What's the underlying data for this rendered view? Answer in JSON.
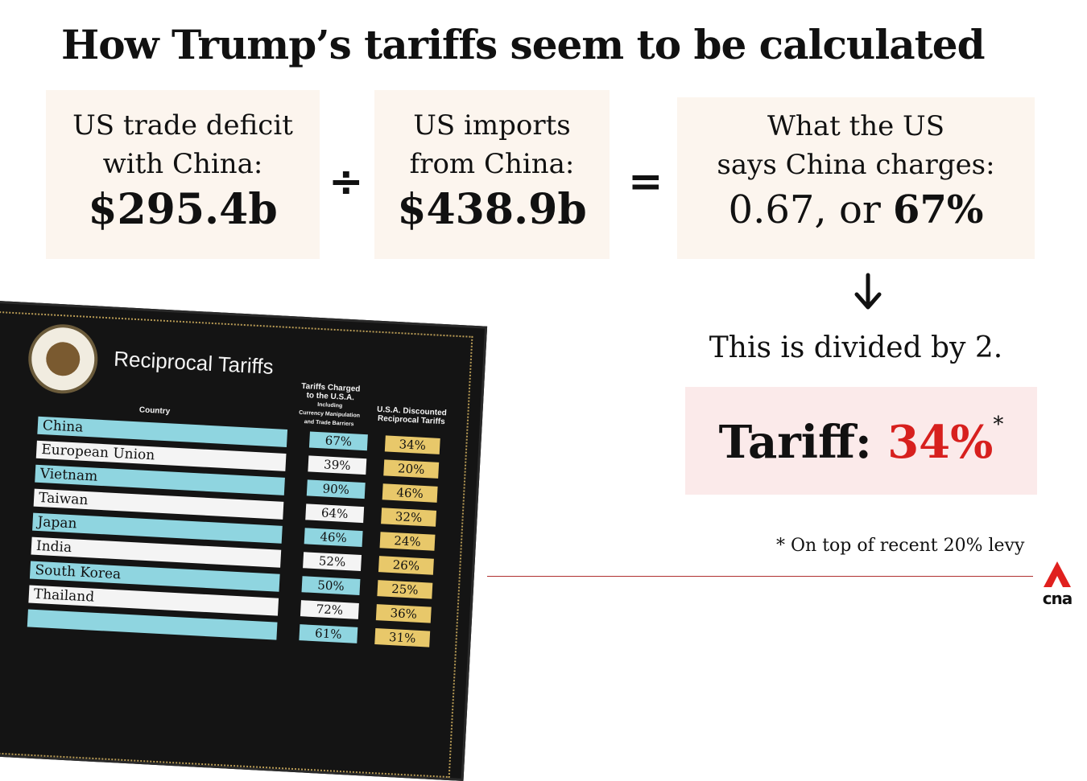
{
  "title": "How Trump’s tariffs seem to be calculated",
  "formula": {
    "deficit": {
      "line1": "US trade deficit",
      "line2": "with China:",
      "value": "$295.4b"
    },
    "divide_symbol": "÷",
    "imports": {
      "line1": "US imports",
      "line2": "from China:",
      "value": "$438.9b"
    },
    "equals_symbol": "=",
    "result": {
      "line1": "What the US",
      "line2": "says China charges:",
      "value_prefix": "0.67, or ",
      "value_bold": "67%"
    }
  },
  "arrow_icon": "down-arrow",
  "step_text": "This is divided by 2.",
  "tariff": {
    "label": "Tariff:",
    "value": "34%",
    "asterisk": "*"
  },
  "footnote": "* On top of recent 20% levy",
  "logo": {
    "text": "cna",
    "color": "#e0201e"
  },
  "colors": {
    "accent_red": "#d7201e",
    "box_bg": "#fcf5ee",
    "tariff_bg": "#fbeaea"
  },
  "board": {
    "title": "Reciprocal Tariffs",
    "col_country": "Country",
    "col_charged": [
      "Tariffs Charged",
      "to the U.S.A.",
      "Including",
      "Currency Manipulation",
      "and Trade Barriers"
    ],
    "col_discounted": [
      "U.S.A. Discounted",
      "Reciprocal Tariffs"
    ],
    "rows": [
      {
        "country": "China",
        "charged": "67%",
        "discounted": "34%"
      },
      {
        "country": "European Union",
        "charged": "39%",
        "discounted": "20%"
      },
      {
        "country": "Vietnam",
        "charged": "90%",
        "discounted": "46%"
      },
      {
        "country": "Taiwan",
        "charged": "64%",
        "discounted": "32%"
      },
      {
        "country": "Japan",
        "charged": "46%",
        "discounted": "24%"
      },
      {
        "country": "India",
        "charged": "52%",
        "discounted": "26%"
      },
      {
        "country": "South Korea",
        "charged": "50%",
        "discounted": "25%"
      },
      {
        "country": "Thailand",
        "charged": "72%",
        "discounted": "36%"
      },
      {
        "country": "",
        "charged": "61%",
        "discounted": "31%"
      }
    ]
  }
}
